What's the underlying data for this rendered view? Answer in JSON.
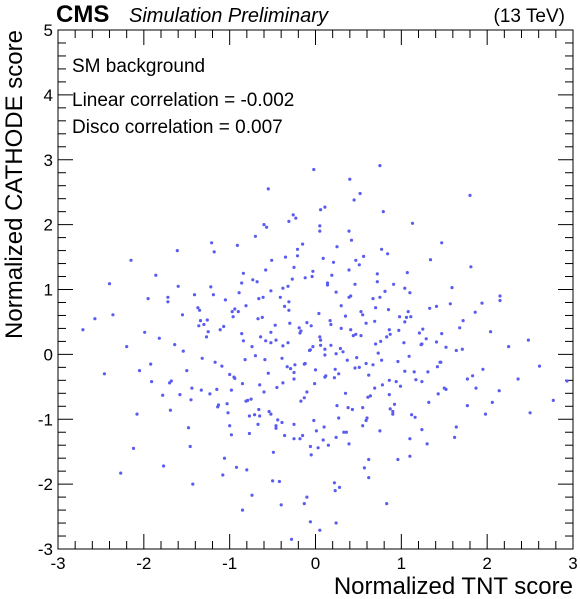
{
  "header": {
    "experiment": "CMS",
    "status": "Simulation Preliminary",
    "energy": "(13 TeV)"
  },
  "annotations": {
    "sample": "SM background",
    "linear_corr": "Linear correlation = -0.002",
    "disco_corr": "Disco correlation = 0.007"
  },
  "colors": {
    "points": "#5a5cf0",
    "axis": "#000000"
  },
  "chart_data": {
    "type": "scatter",
    "xlabel": "Normalized TNT score",
    "ylabel": "Normalized CATHODE score",
    "xlim": [
      -3,
      3
    ],
    "ylim": [
      -3,
      5
    ],
    "xticks": [
      "-3",
      "-2",
      "-1",
      "0",
      "1",
      "2",
      "3"
    ],
    "yticks": [
      "-3",
      "-2",
      "-1",
      "0",
      "1",
      "2",
      "3",
      "4",
      "5"
    ],
    "grid": false,
    "legend": "none",
    "series": [
      {
        "x": [
          -2.71,
          -2.57,
          -2.46,
          -2.36,
          -2.27,
          -2.2,
          -2.15,
          -2.08,
          -1.99,
          -1.92,
          -1.86,
          -1.78,
          -1.72,
          -1.68,
          -1.61,
          -1.54,
          -1.48,
          -1.41,
          -1.33,
          -1.27,
          -1.21,
          -1.14,
          -1.07,
          -0.98,
          -0.9,
          -0.82,
          -0.73,
          -0.65,
          -0.58,
          -0.49,
          -0.41,
          -0.33,
          -0.25,
          -0.17,
          -0.1,
          -0.02,
          0.06,
          0.14,
          0.22,
          0.3,
          0.39,
          0.47,
          0.56,
          0.64,
          0.73,
          0.81,
          0.9,
          0.98,
          1.07,
          1.15,
          1.24,
          1.33,
          1.41,
          1.5,
          1.59,
          1.68,
          1.77,
          1.86,
          1.95,
          2.04,
          2.14,
          2.25,
          2.36,
          2.48,
          2.61,
          2.77,
          2.93,
          -2.12,
          -1.95,
          -1.77,
          -1.6,
          -1.43,
          -1.26,
          -1.08,
          -0.91,
          -0.74,
          -0.57,
          -0.4,
          -0.23,
          -0.06,
          0.11,
          0.28,
          0.45,
          0.62,
          0.79,
          0.96,
          1.13,
          1.3,
          1.47,
          1.64,
          1.81,
          1.98,
          2.15,
          -2.4,
          -2.05,
          -1.7,
          -1.35,
          -1.0,
          -0.65,
          -0.3,
          0.05,
          0.4,
          0.75,
          1.1,
          1.45,
          1.8,
          2.15,
          2.5,
          -1.91,
          -1.82,
          -1.69,
          -1.55,
          -1.46,
          -1.32,
          -1.19,
          -1.06,
          -0.95,
          -0.86,
          -0.77,
          -0.68,
          -0.6,
          -0.52,
          -0.44,
          -0.36,
          -0.29,
          -0.21,
          -0.13,
          -0.05,
          0.03,
          0.11,
          0.19,
          0.27,
          0.35,
          0.43,
          0.51,
          0.59,
          0.67,
          0.75,
          0.83,
          0.91,
          0.99,
          1.08,
          1.16,
          1.25,
          1.34,
          1.43,
          1.52,
          1.62,
          1.72,
          1.83,
          1.94,
          2.06,
          -1.64,
          -1.5,
          -1.37,
          -1.23,
          -1.11,
          -1.0,
          -0.89,
          -0.79,
          -0.7,
          -0.62,
          -0.54,
          -0.46,
          -0.38,
          -0.31,
          -0.24,
          -0.17,
          -0.1,
          -0.03,
          0.04,
          0.11,
          0.18,
          0.25,
          0.32,
          0.39,
          0.46,
          0.53,
          0.61,
          0.69,
          0.77,
          0.85,
          0.94,
          1.03,
          1.12,
          1.21,
          1.31,
          1.41,
          1.52,
          1.64,
          1.77,
          -1.44,
          -1.3,
          -1.17,
          -1.05,
          -0.94,
          -0.84,
          -0.75,
          -0.67,
          -0.59,
          -0.52,
          -0.45,
          -0.38,
          -0.31,
          -0.25,
          -0.19,
          -0.13,
          -0.07,
          -0.01,
          0.05,
          0.11,
          0.17,
          0.23,
          0.29,
          0.35,
          0.41,
          0.48,
          0.55,
          0.62,
          0.7,
          0.78,
          0.87,
          0.96,
          1.06,
          1.17,
          1.29,
          1.42,
          -1.25,
          -1.09,
          -0.96,
          -0.85,
          -0.74,
          -0.64,
          -0.55,
          -0.47,
          -0.39,
          -0.32,
          -0.25,
          -0.18,
          -0.12,
          -0.06,
          0.0,
          0.06,
          0.12,
          0.18,
          0.24,
          0.3,
          0.37,
          0.44,
          0.51,
          0.59,
          0.67,
          0.76,
          0.86,
          0.97,
          1.09,
          1.23,
          -1.03,
          -0.86,
          -0.71,
          -0.58,
          -0.46,
          -0.35,
          -0.25,
          -0.15,
          -0.05,
          0.05,
          0.15,
          0.25,
          0.36,
          0.47,
          0.59,
          0.72,
          0.87,
          1.04,
          -0.8,
          -0.6,
          -0.42,
          -0.26,
          -0.1,
          0.06,
          0.22,
          0.39,
          0.57,
          0.77,
          -0.98,
          -0.81,
          -0.66,
          -0.52,
          -0.39,
          -0.27,
          -0.15,
          -0.03,
          0.09,
          0.21,
          0.33,
          0.46,
          0.6,
          0.75,
          0.92,
          1.11,
          -1.36,
          -1.15,
          -0.97,
          -0.81,
          -0.66,
          -0.52,
          -0.38,
          -0.25,
          -0.12,
          0.01,
          0.14,
          0.27,
          0.41,
          0.55,
          0.7,
          0.86,
          1.04,
          1.24,
          1.47,
          -1.58,
          -1.34,
          -1.13,
          -0.94,
          -0.77,
          -0.61,
          -0.46,
          -0.32,
          -0.18,
          -0.04,
          0.1,
          0.24,
          0.38,
          0.53,
          0.69,
          0.86,
          1.04,
          1.24,
          1.46,
          1.71,
          -1.72,
          -1.45,
          -1.22,
          -1.02,
          -0.84,
          -0.67,
          -0.51,
          -0.36,
          -0.21,
          -0.06,
          0.09,
          0.24,
          0.39,
          0.55,
          0.72,
          0.9,
          1.1,
          1.32,
          1.57,
          1.87,
          -1.18,
          -0.92,
          -0.7,
          -0.5,
          -0.31,
          -0.13,
          0.05,
          0.23,
          0.42,
          0.62,
          0.84,
          1.1,
          -0.85,
          -0.55,
          -0.28,
          -0.02,
          0.24,
          0.52,
          0.83
        ],
        "y": [
          0.38,
          0.55,
          -0.3,
          0.61,
          -1.83,
          0.12,
          1.45,
          -0.92,
          0.34,
          -0.15,
          1.22,
          -0.63,
          0.81,
          -0.41,
          1.6,
          0.05,
          -1.13,
          0.92,
          -0.55,
          0.27,
          1.72,
          -0.81,
          0.43,
          -1.24,
          0.66,
          -0.08,
          1.15,
          -0.47,
          0.21,
          -1.51,
          0.88,
          -0.19,
          1.34,
          -0.72,
          0.49,
          -1.02,
          0.14,
          1.07,
          -0.36,
          0.75,
          -1.38,
          0.31,
          1.51,
          -0.64,
          0.02,
          0.97,
          -0.88,
          0.58,
          1.26,
          -0.27,
          -1.16,
          0.71,
          0.19,
          -0.52,
          1.03,
          0.41,
          -0.79,
          0.65,
          -0.23,
          0.35,
          -0.56,
          0.12,
          -0.38,
          0.22,
          -0.18,
          -0.71,
          -0.41,
          -1.45,
          0.86,
          -1.72,
          1.05,
          -2.0,
          0.53,
          -1.86,
          1.68,
          -2.17,
          1.96,
          -2.32,
          2.1,
          -2.58,
          2.27,
          -2.05,
          2.38,
          -1.9,
          2.2,
          -1.62,
          2.02,
          -1.38,
          1.72,
          -1.12,
          1.35,
          -0.92,
          0.83,
          1.09,
          -0.25,
          -0.44,
          0.68,
          -1.1,
          -0.95,
          0.48,
          -2.71,
          2.7,
          2.91,
          -1.57,
          -0.12,
          2.45,
          0.9,
          -0.9,
          -0.42,
          0.25,
          -0.86,
          0.61,
          -1.42,
          -0.06,
          0.92,
          -1.6,
          -0.35,
          0.32,
          -1.22,
          1.12,
          -0.58,
          0.18,
          -1.01,
          0.74,
          -0.22,
          1.52,
          -0.67,
          0.44,
          -1.44,
          0.08,
          1.22,
          -0.3,
          0.59,
          -0.85,
          1.38,
          -0.14,
          0.86,
          -1.18,
          0.27,
          1.08,
          -0.49,
          0.66,
          -0.97,
          0.39,
          1.46,
          -0.61,
          0.11,
          -1.28,
          0.52,
          -0.33,
          0.79,
          -0.74,
          0.15,
          -0.25,
          0.72,
          -0.61,
          0.38,
          -0.31,
          0.95,
          -0.71,
          -0.02,
          0.57,
          -0.88,
          0.22,
          -0.44,
          0.81,
          -0.16,
          0.36,
          -0.58,
          0.12,
          0.63,
          -0.35,
          0.46,
          -0.79,
          0.04,
          0.88,
          -0.21,
          0.29,
          -0.66,
          0.51,
          -0.09,
          0.69,
          -0.42,
          0.18,
          -0.93,
          0.33,
          -0.27,
          0.74,
          -0.54,
          0.06,
          -0.38,
          -0.52,
          0.46,
          -0.12,
          0.84,
          -0.37,
          0.21,
          -0.69,
          0.55,
          -0.08,
          0.34,
          -0.51,
          0.13,
          0.68,
          -0.28,
          0.41,
          -0.15,
          0.06,
          -0.45,
          0.27,
          -0.01,
          0.52,
          -0.23,
          0.09,
          -0.6,
          0.38,
          -0.05,
          0.61,
          -0.32,
          0.16,
          -0.47,
          0.31,
          -0.11,
          0.57,
          -0.39,
          0.24,
          -0.19,
          0.35,
          -0.18,
          0.58,
          -0.45,
          0.12,
          0.27,
          -0.29,
          0.45,
          -0.06,
          0.18,
          -0.38,
          0.33,
          -0.14,
          0.07,
          -0.24,
          0.22,
          -0.33,
          0.14,
          0.01,
          0.4,
          -0.09,
          0.29,
          -0.2,
          0.48,
          -0.16,
          0.2,
          -0.4,
          0.37,
          -0.03,
          0.15,
          -0.76,
          1.1,
          -0.93,
          1.3,
          -1.1,
          1.5,
          -1.3,
          1.7,
          -1.55,
          1.9,
          -1.4,
          1.66,
          -1.2,
          1.45,
          -1.02,
          1.24,
          -0.84,
          1.02,
          -1.78,
          2.0,
          -1.96,
          2.15,
          -2.2,
          2.23,
          -1.98,
          1.9,
          -1.75,
          1.62,
          -0.55,
          0.75,
          -0.85,
          0.98,
          -1.05,
          1.16,
          -1.25,
          1.28,
          -1.32,
          1.42,
          -1.2,
          1.08,
          -0.98,
          0.88,
          -0.77,
          0.58,
          0.44,
          -0.54,
          0.66,
          -0.72,
          0.86,
          -0.92,
          1.02,
          -1.08,
          1.18,
          -1.18,
          1.1,
          -0.98,
          0.9,
          -0.82,
          0.72,
          -0.62,
          0.5,
          -0.42,
          0.32,
          -0.62,
          0.52,
          -0.78,
          0.7,
          -0.95,
          0.88,
          -1.14,
          1.05,
          -1.3,
          1.2,
          -1.12,
          0.96,
          -0.82,
          0.66,
          -0.52,
          0.38,
          -0.26,
          0.16,
          -0.12,
          0.08,
          0.88,
          -0.7,
          1.04,
          -0.9,
          1.25,
          -1.08,
          1.45,
          -1.25,
          1.62,
          -1.42,
          1.48,
          -1.28,
          1.3,
          -1.1,
          1.12,
          -0.92,
          0.95,
          -0.74,
          0.78,
          -0.52,
          1.58,
          -1.74,
          1.82,
          -1.95,
          2.05,
          -2.3,
          1.98,
          -2.1,
          1.76,
          -1.62,
          1.55,
          -1.3,
          -2.4,
          2.55,
          -2.85,
          2.85,
          -2.6,
          2.48,
          -2.3
        ]
      }
    ]
  }
}
